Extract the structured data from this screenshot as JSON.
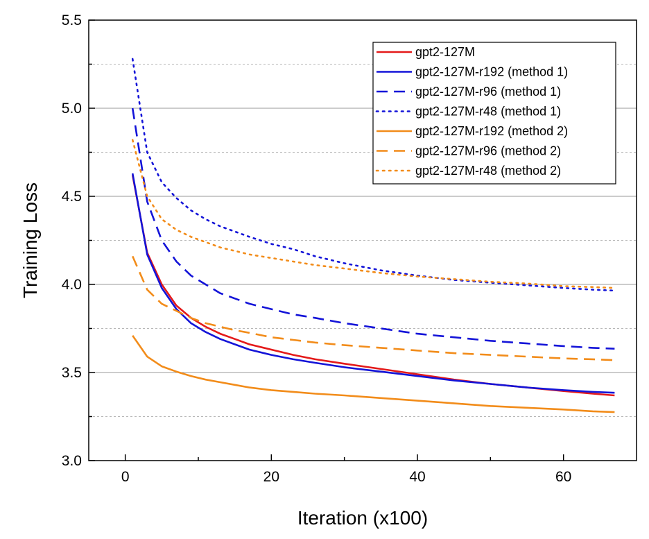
{
  "chart_data": {
    "type": "line",
    "title": "",
    "xlabel": "Iteration (x100)",
    "ylabel": "Training Loss",
    "xlim": [
      -5,
      70
    ],
    "ylim": [
      3.0,
      5.5
    ],
    "xticks": [
      0,
      20,
      40,
      60
    ],
    "yticks": [
      3.0,
      3.5,
      4.0,
      4.5,
      5.0,
      5.5
    ],
    "xtick_labels": [
      "0",
      "20",
      "40",
      "60"
    ],
    "ytick_labels": [
      "3.0",
      "3.5",
      "4.0",
      "4.5",
      "5.0",
      "5.5"
    ],
    "grid": "horizontal major solid, minor dotted",
    "legend_position": "top-right",
    "series": [
      {
        "name": "gpt2-127M",
        "color": "#e41a1a",
        "style": "solid",
        "x": [
          1,
          3,
          5,
          7,
          9,
          11,
          13,
          15,
          17,
          20,
          23,
          26,
          30,
          35,
          40,
          45,
          50,
          55,
          60,
          64,
          67
        ],
        "y": [
          4.62,
          4.18,
          4.0,
          3.88,
          3.81,
          3.76,
          3.72,
          3.69,
          3.66,
          3.63,
          3.6,
          3.575,
          3.55,
          3.52,
          3.49,
          3.46,
          3.435,
          3.415,
          3.395,
          3.38,
          3.37
        ]
      },
      {
        "name": "gpt2-127M-r192 (method 1)",
        "color": "#1414d8",
        "style": "solid",
        "x": [
          1,
          3,
          5,
          7,
          9,
          11,
          13,
          15,
          17,
          20,
          23,
          26,
          30,
          35,
          40,
          45,
          50,
          55,
          60,
          64,
          67
        ],
        "y": [
          4.63,
          4.17,
          3.98,
          3.86,
          3.78,
          3.73,
          3.69,
          3.66,
          3.63,
          3.6,
          3.575,
          3.555,
          3.53,
          3.505,
          3.48,
          3.455,
          3.435,
          3.415,
          3.4,
          3.39,
          3.385
        ]
      },
      {
        "name": "gpt2-127M-r96 (method 1)",
        "color": "#1414d8",
        "style": "dash",
        "x": [
          1,
          3,
          5,
          7,
          9,
          11,
          13,
          15,
          17,
          20,
          23,
          26,
          30,
          35,
          40,
          45,
          50,
          55,
          60,
          64,
          67
        ],
        "y": [
          5.0,
          4.47,
          4.25,
          4.13,
          4.05,
          4.0,
          3.95,
          3.92,
          3.89,
          3.86,
          3.83,
          3.81,
          3.78,
          3.75,
          3.72,
          3.7,
          3.68,
          3.665,
          3.65,
          3.64,
          3.635
        ]
      },
      {
        "name": "gpt2-127M-r48 (method 1)",
        "color": "#1414d8",
        "style": "dot",
        "x": [
          1,
          3,
          5,
          7,
          9,
          11,
          13,
          15,
          17,
          20,
          23,
          26,
          30,
          35,
          40,
          45,
          50,
          55,
          60,
          64,
          67
        ],
        "y": [
          5.28,
          4.75,
          4.58,
          4.49,
          4.42,
          4.37,
          4.33,
          4.3,
          4.27,
          4.23,
          4.2,
          4.16,
          4.12,
          4.08,
          4.05,
          4.025,
          4.01,
          3.995,
          3.98,
          3.97,
          3.965
        ]
      },
      {
        "name": "gpt2-127M-r192 (method 2)",
        "color": "#f28c1a",
        "style": "solid",
        "x": [
          1,
          3,
          5,
          7,
          9,
          11,
          13,
          15,
          17,
          20,
          23,
          26,
          30,
          35,
          40,
          45,
          50,
          55,
          60,
          64,
          67
        ],
        "y": [
          3.71,
          3.59,
          3.535,
          3.505,
          3.48,
          3.46,
          3.445,
          3.43,
          3.415,
          3.4,
          3.39,
          3.38,
          3.37,
          3.355,
          3.34,
          3.325,
          3.31,
          3.3,
          3.29,
          3.28,
          3.275
        ]
      },
      {
        "name": "gpt2-127M-r96 (method 2)",
        "color": "#f28c1a",
        "style": "dash",
        "x": [
          1,
          3,
          5,
          7,
          9,
          11,
          13,
          15,
          17,
          20,
          23,
          26,
          30,
          35,
          40,
          45,
          50,
          55,
          60,
          64,
          67
        ],
        "y": [
          4.16,
          3.97,
          3.89,
          3.85,
          3.81,
          3.78,
          3.76,
          3.74,
          3.725,
          3.7,
          3.685,
          3.67,
          3.655,
          3.64,
          3.625,
          3.61,
          3.6,
          3.59,
          3.58,
          3.575,
          3.57
        ]
      },
      {
        "name": "gpt2-127M-r48 (method 2)",
        "color": "#f28c1a",
        "style": "dot",
        "x": [
          1,
          3,
          5,
          7,
          9,
          11,
          13,
          15,
          17,
          20,
          23,
          26,
          30,
          35,
          40,
          45,
          50,
          55,
          60,
          64,
          67
        ],
        "y": [
          4.82,
          4.5,
          4.37,
          4.31,
          4.27,
          4.24,
          4.21,
          4.19,
          4.17,
          4.15,
          4.13,
          4.11,
          4.09,
          4.065,
          4.045,
          4.03,
          4.015,
          4.005,
          3.99,
          3.985,
          3.98
        ]
      }
    ]
  }
}
